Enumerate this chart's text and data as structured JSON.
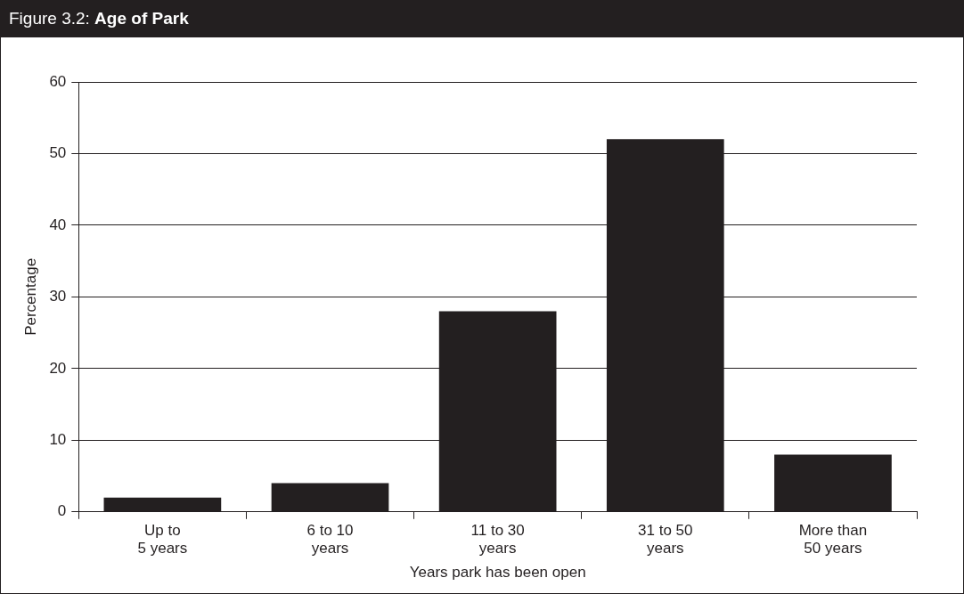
{
  "chart_data": {
    "type": "bar",
    "title": "Figure 3.2: Age of Park",
    "categories": [
      "Up to\n5 years",
      "6 to 10\nyears",
      "11 to 30\nyears",
      "31 to 50\nyears",
      "More than\n50 years"
    ],
    "values": [
      2,
      4,
      28,
      52,
      8
    ],
    "color": "#231f20",
    "xlabel": "Years park has been open",
    "ylabel": "Percentage",
    "ylim": [
      0,
      60
    ],
    "yticks": [
      0,
      10,
      20,
      30,
      40,
      50,
      60
    ],
    "grid": "y",
    "legend": false
  }
}
